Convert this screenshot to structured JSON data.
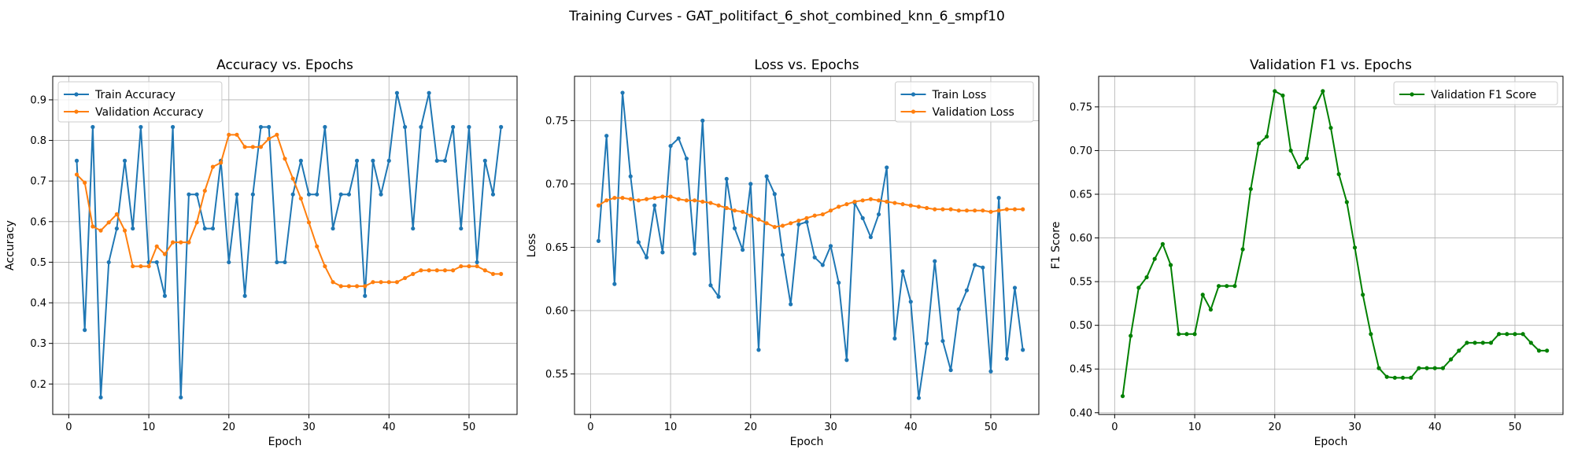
{
  "figure": {
    "title": "Training Curves - GAT_politifact_6_shot_combined_knn_6_smpf10"
  },
  "chart_data": [
    {
      "type": "line",
      "title": "Accuracy vs. Epochs",
      "xlabel": "Epoch",
      "ylabel": "Accuracy",
      "xlim": [
        -2,
        56
      ],
      "ylim": [
        0.125,
        0.958
      ],
      "xticks": [
        0,
        10,
        20,
        30,
        40,
        50
      ],
      "yticks": [
        0.2,
        0.3,
        0.4,
        0.5,
        0.6,
        0.7,
        0.8,
        0.9
      ],
      "ytick_decimals": 1,
      "grid": true,
      "legend_position": "upper-left",
      "x": [
        1,
        2,
        3,
        4,
        5,
        6,
        7,
        8,
        9,
        10,
        11,
        12,
        13,
        14,
        15,
        16,
        17,
        18,
        19,
        20,
        21,
        22,
        23,
        24,
        25,
        26,
        27,
        28,
        29,
        30,
        31,
        32,
        33,
        34,
        35,
        36,
        37,
        38,
        39,
        40,
        41,
        42,
        43,
        44,
        45,
        46,
        47,
        48,
        49,
        50,
        51,
        52,
        53,
        54
      ],
      "series": [
        {
          "name": "Train Accuracy",
          "color": "#1f77b4",
          "values": [
            0.75,
            0.333,
            0.833,
            0.167,
            0.5,
            0.583,
            0.75,
            0.583,
            0.833,
            0.5,
            0.5,
            0.417,
            0.833,
            0.167,
            0.667,
            0.667,
            0.583,
            0.583,
            0.75,
            0.5,
            0.667,
            0.417,
            0.667,
            0.833,
            0.833,
            0.5,
            0.5,
            0.667,
            0.75,
            0.667,
            0.667,
            0.833,
            0.583,
            0.667,
            0.667,
            0.75,
            0.417,
            0.75,
            0.667,
            0.75,
            0.917,
            0.833,
            0.583,
            0.833,
            0.917,
            0.75,
            0.75,
            0.833,
            0.583,
            0.833,
            0.5,
            0.75,
            0.667,
            0.833
          ]
        },
        {
          "name": "Validation Accuracy",
          "color": "#ff7f0e",
          "values": [
            0.716,
            0.696,
            0.588,
            0.578,
            0.598,
            0.618,
            0.578,
            0.49,
            0.49,
            0.49,
            0.539,
            0.52,
            0.549,
            0.549,
            0.549,
            0.598,
            0.676,
            0.735,
            0.745,
            0.814,
            0.814,
            0.784,
            0.784,
            0.784,
            0.804,
            0.814,
            0.755,
            0.706,
            0.657,
            0.598,
            0.539,
            0.49,
            0.451,
            0.441,
            0.441,
            0.441,
            0.441,
            0.451,
            0.451,
            0.451,
            0.451,
            0.461,
            0.471,
            0.48,
            0.48,
            0.48,
            0.48,
            0.48,
            0.49,
            0.49,
            0.49,
            0.48,
            0.471,
            0.471
          ]
        }
      ]
    },
    {
      "type": "line",
      "title": "Loss vs. Epochs",
      "xlabel": "Epoch",
      "ylabel": "Loss",
      "xlim": [
        -2,
        56
      ],
      "ylim": [
        0.518,
        0.785
      ],
      "xticks": [
        0,
        10,
        20,
        30,
        40,
        50
      ],
      "yticks": [
        0.55,
        0.6,
        0.65,
        0.7,
        0.75
      ],
      "ytick_decimals": 2,
      "grid": true,
      "legend_position": "upper-right",
      "x": [
        1,
        2,
        3,
        4,
        5,
        6,
        7,
        8,
        9,
        10,
        11,
        12,
        13,
        14,
        15,
        16,
        17,
        18,
        19,
        20,
        21,
        22,
        23,
        24,
        25,
        26,
        27,
        28,
        29,
        30,
        31,
        32,
        33,
        34,
        35,
        36,
        37,
        38,
        39,
        40,
        41,
        42,
        43,
        44,
        45,
        46,
        47,
        48,
        49,
        50,
        51,
        52,
        53,
        54
      ],
      "series": [
        {
          "name": "Train Loss",
          "color": "#1f77b4",
          "values": [
            0.655,
            0.738,
            0.621,
            0.772,
            0.706,
            0.654,
            0.642,
            0.683,
            0.646,
            0.73,
            0.736,
            0.72,
            0.645,
            0.75,
            0.62,
            0.611,
            0.704,
            0.665,
            0.648,
            0.7,
            0.569,
            0.706,
            0.692,
            0.644,
            0.605,
            0.668,
            0.67,
            0.642,
            0.636,
            0.651,
            0.622,
            0.561,
            0.685,
            0.673,
            0.658,
            0.676,
            0.713,
            0.578,
            0.631,
            0.607,
            0.531,
            0.574,
            0.639,
            0.576,
            0.553,
            0.601,
            0.616,
            0.636,
            0.634,
            0.552,
            0.689,
            0.562,
            0.618,
            0.569
          ]
        },
        {
          "name": "Validation Loss",
          "color": "#ff7f0e",
          "values": [
            0.683,
            0.687,
            0.689,
            0.689,
            0.688,
            0.687,
            0.688,
            0.689,
            0.69,
            0.69,
            0.688,
            0.687,
            0.687,
            0.686,
            0.685,
            0.683,
            0.681,
            0.679,
            0.678,
            0.675,
            0.672,
            0.669,
            0.666,
            0.667,
            0.669,
            0.671,
            0.673,
            0.675,
            0.676,
            0.679,
            0.682,
            0.684,
            0.686,
            0.687,
            0.688,
            0.687,
            0.686,
            0.685,
            0.684,
            0.683,
            0.682,
            0.681,
            0.68,
            0.68,
            0.68,
            0.679,
            0.679,
            0.679,
            0.679,
            0.678,
            0.679,
            0.68,
            0.68,
            0.68
          ]
        }
      ]
    },
    {
      "type": "line",
      "title": "Validation F1 vs. Epochs",
      "xlabel": "Epoch",
      "ylabel": "F1 Score",
      "xlim": [
        -2,
        56
      ],
      "ylim": [
        0.398,
        0.785
      ],
      "xticks": [
        0,
        10,
        20,
        30,
        40,
        50
      ],
      "yticks": [
        0.4,
        0.45,
        0.5,
        0.55,
        0.6,
        0.65,
        0.7,
        0.75
      ],
      "ytick_decimals": 2,
      "grid": true,
      "legend_position": "upper-right",
      "x": [
        1,
        2,
        3,
        4,
        5,
        6,
        7,
        8,
        9,
        10,
        11,
        12,
        13,
        14,
        15,
        16,
        17,
        18,
        19,
        20,
        21,
        22,
        23,
        24,
        25,
        26,
        27,
        28,
        29,
        30,
        31,
        32,
        33,
        34,
        35,
        36,
        37,
        38,
        39,
        40,
        41,
        42,
        43,
        44,
        45,
        46,
        47,
        48,
        49,
        50,
        51,
        52,
        53,
        54
      ],
      "series": [
        {
          "name": "Validation F1 Score",
          "color": "#008000",
          "values": [
            0.419,
            0.488,
            0.543,
            0.555,
            0.576,
            0.593,
            0.569,
            0.49,
            0.49,
            0.49,
            0.535,
            0.518,
            0.545,
            0.545,
            0.545,
            0.587,
            0.656,
            0.708,
            0.716,
            0.768,
            0.763,
            0.7,
            0.681,
            0.691,
            0.749,
            0.768,
            0.726,
            0.673,
            0.641,
            0.589,
            0.535,
            0.49,
            0.451,
            0.441,
            0.44,
            0.44,
            0.44,
            0.451,
            0.451,
            0.451,
            0.451,
            0.461,
            0.471,
            0.48,
            0.48,
            0.48,
            0.48,
            0.49,
            0.49,
            0.49,
            0.49,
            0.48,
            0.471,
            0.471
          ]
        }
      ]
    }
  ]
}
